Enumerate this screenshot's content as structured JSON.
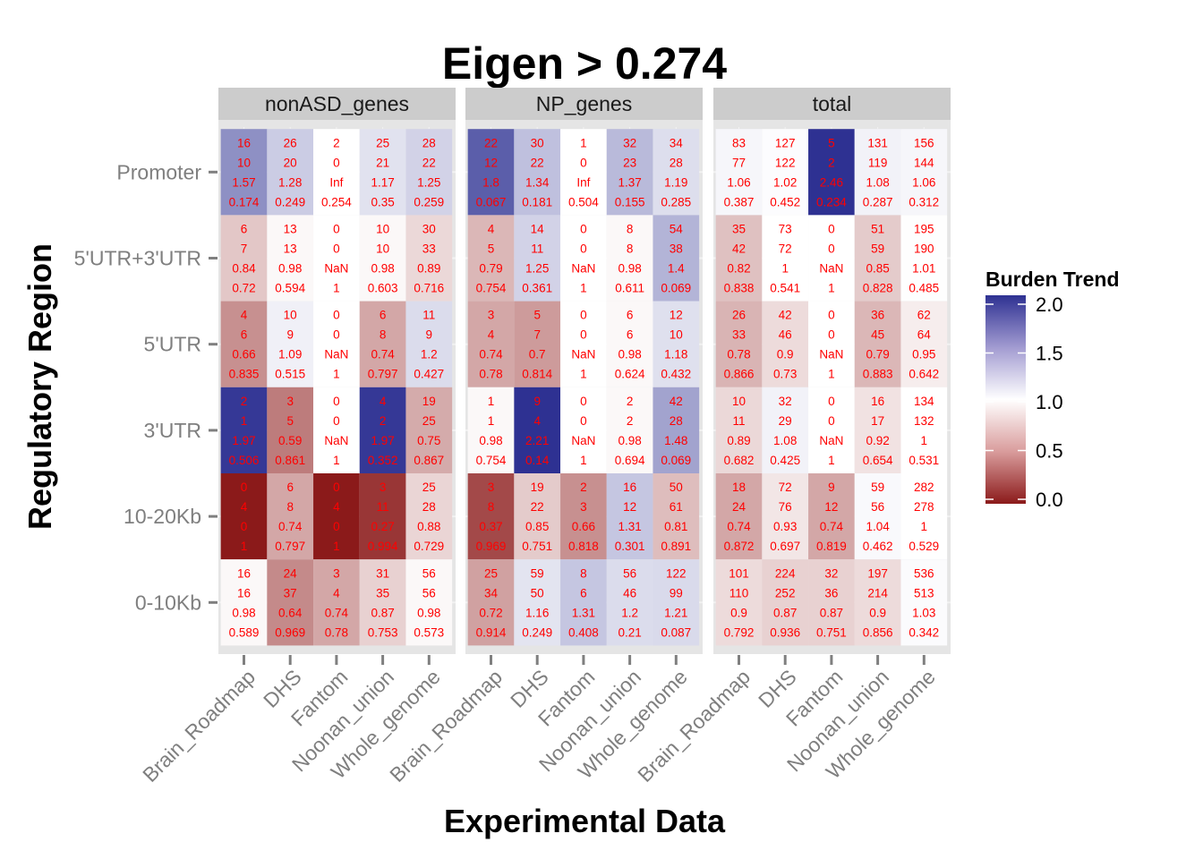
{
  "chart_data": {
    "type": "heatmap",
    "title": "Eigen > 0.274",
    "xlabel": "Experimental Data",
    "ylabel": "Regulatory Region",
    "facets": [
      "nonASD_genes",
      "NP_genes",
      "total"
    ],
    "x_categories": [
      "Brain_Roadmap",
      "DHS",
      "Fantom",
      "Noonan_union",
      "Whole_genome"
    ],
    "y_categories": [
      "Promoter",
      "5'UTR+3'UTR",
      "5'UTR",
      "3'UTR",
      "10-20Kb",
      "0-10Kb"
    ],
    "legend": {
      "title": "Burden Trend",
      "position": "right",
      "ticks": [
        "2.0",
        "1.5",
        "1.0",
        "0.5",
        "0.0"
      ],
      "range": [
        0,
        2
      ],
      "colors": {
        "low": "#8b1a1a",
        "mid": "#ffffff",
        "high": "#2e3192"
      }
    },
    "cells": {
      "nonASD_genes": [
        [
          [
            "16",
            "10",
            "1.57",
            "0.174"
          ],
          [
            "26",
            "20",
            "1.28",
            "0.249"
          ],
          [
            "2",
            "0",
            "Inf",
            "0.254"
          ],
          [
            "25",
            "21",
            "1.17",
            "0.35"
          ],
          [
            "28",
            "22",
            "1.25",
            "0.259"
          ]
        ],
        [
          [
            "6",
            "7",
            "0.84",
            "0.72"
          ],
          [
            "13",
            "13",
            "0.98",
            "0.594"
          ],
          [
            "0",
            "0",
            "NaN",
            "1"
          ],
          [
            "10",
            "10",
            "0.98",
            "0.603"
          ],
          [
            "30",
            "33",
            "0.89",
            "0.716"
          ]
        ],
        [
          [
            "4",
            "6",
            "0.66",
            "0.835"
          ],
          [
            "10",
            "9",
            "1.09",
            "0.515"
          ],
          [
            "0",
            "0",
            "NaN",
            "1"
          ],
          [
            "6",
            "8",
            "0.74",
            "0.797"
          ],
          [
            "11",
            "9",
            "1.2",
            "0.427"
          ]
        ],
        [
          [
            "2",
            "1",
            "1.97",
            "0.506"
          ],
          [
            "3",
            "5",
            "0.59",
            "0.861"
          ],
          [
            "0",
            "0",
            "NaN",
            "1"
          ],
          [
            "4",
            "2",
            "1.97",
            "0.352"
          ],
          [
            "19",
            "25",
            "0.75",
            "0.867"
          ]
        ],
        [
          [
            "0",
            "4",
            "0",
            "1"
          ],
          [
            "6",
            "8",
            "0.74",
            "0.797"
          ],
          [
            "0",
            "4",
            "0",
            "1"
          ],
          [
            "3",
            "11",
            "0.27",
            "0.994"
          ],
          [
            "25",
            "28",
            "0.88",
            "0.729"
          ]
        ],
        [
          [
            "16",
            "16",
            "0.98",
            "0.589"
          ],
          [
            "24",
            "37",
            "0.64",
            "0.969"
          ],
          [
            "3",
            "4",
            "0.74",
            "0.78"
          ],
          [
            "31",
            "35",
            "0.87",
            "0.753"
          ],
          [
            "56",
            "56",
            "0.98",
            "0.573"
          ]
        ]
      ],
      "NP_genes": [
        [
          [
            "22",
            "12",
            "1.8",
            "0.067"
          ],
          [
            "30",
            "22",
            "1.34",
            "0.181"
          ],
          [
            "1",
            "0",
            "Inf",
            "0.504"
          ],
          [
            "32",
            "23",
            "1.37",
            "0.155"
          ],
          [
            "34",
            "28",
            "1.19",
            "0.285"
          ]
        ],
        [
          [
            "4",
            "5",
            "0.79",
            "0.754"
          ],
          [
            "14",
            "11",
            "1.25",
            "0.361"
          ],
          [
            "0",
            "0",
            "NaN",
            "1"
          ],
          [
            "8",
            "8",
            "0.98",
            "0.611"
          ],
          [
            "54",
            "38",
            "1.4",
            "0.069"
          ]
        ],
        [
          [
            "3",
            "4",
            "0.74",
            "0.78"
          ],
          [
            "5",
            "7",
            "0.7",
            "0.814"
          ],
          [
            "0",
            "0",
            "NaN",
            "1"
          ],
          [
            "6",
            "6",
            "0.98",
            "0.624"
          ],
          [
            "12",
            "10",
            "1.18",
            "0.432"
          ]
        ],
        [
          [
            "1",
            "1",
            "0.98",
            "0.754"
          ],
          [
            "9",
            "4",
            "2.21",
            "0.14"
          ],
          [
            "0",
            "0",
            "NaN",
            "1"
          ],
          [
            "2",
            "2",
            "0.98",
            "0.694"
          ],
          [
            "42",
            "28",
            "1.48",
            "0.069"
          ]
        ],
        [
          [
            "3",
            "8",
            "0.37",
            "0.969"
          ],
          [
            "19",
            "22",
            "0.85",
            "0.751"
          ],
          [
            "2",
            "3",
            "0.66",
            "0.818"
          ],
          [
            "16",
            "12",
            "1.31",
            "0.301"
          ],
          [
            "50",
            "61",
            "0.81",
            "0.891"
          ]
        ],
        [
          [
            "25",
            "34",
            "0.72",
            "0.914"
          ],
          [
            "59",
            "50",
            "1.16",
            "0.249"
          ],
          [
            "8",
            "6",
            "1.31",
            "0.408"
          ],
          [
            "56",
            "46",
            "1.2",
            "0.21"
          ],
          [
            "122",
            "99",
            "1.21",
            "0.087"
          ]
        ]
      ],
      "total": [
        [
          [
            "83",
            "77",
            "1.06",
            "0.387"
          ],
          [
            "127",
            "122",
            "1.02",
            "0.452"
          ],
          [
            "5",
            "2",
            "2.46",
            "0.234"
          ],
          [
            "131",
            "119",
            "1.08",
            "0.287"
          ],
          [
            "156",
            "144",
            "1.06",
            "0.312"
          ]
        ],
        [
          [
            "35",
            "42",
            "0.82",
            "0.838"
          ],
          [
            "73",
            "72",
            "1",
            "0.541"
          ],
          [
            "0",
            "0",
            "NaN",
            "1"
          ],
          [
            "51",
            "59",
            "0.85",
            "0.828"
          ],
          [
            "195",
            "190",
            "1.01",
            "0.485"
          ]
        ],
        [
          [
            "26",
            "33",
            "0.78",
            "0.866"
          ],
          [
            "42",
            "46",
            "0.9",
            "0.73"
          ],
          [
            "0",
            "0",
            "NaN",
            "1"
          ],
          [
            "36",
            "45",
            "0.79",
            "0.883"
          ],
          [
            "62",
            "64",
            "0.95",
            "0.642"
          ]
        ],
        [
          [
            "10",
            "11",
            "0.89",
            "0.682"
          ],
          [
            "32",
            "29",
            "1.08",
            "0.425"
          ],
          [
            "0",
            "0",
            "NaN",
            "1"
          ],
          [
            "16",
            "17",
            "0.92",
            "0.654"
          ],
          [
            "134",
            "132",
            "1",
            "0.531"
          ]
        ],
        [
          [
            "18",
            "24",
            "0.74",
            "0.872"
          ],
          [
            "72",
            "76",
            "0.93",
            "0.697"
          ],
          [
            "9",
            "12",
            "0.74",
            "0.819"
          ],
          [
            "59",
            "56",
            "1.04",
            "0.462"
          ],
          [
            "282",
            "278",
            "1",
            "0.529"
          ]
        ],
        [
          [
            "101",
            "110",
            "0.9",
            "0.792"
          ],
          [
            "224",
            "252",
            "0.87",
            "0.936"
          ],
          [
            "32",
            "36",
            "0.87",
            "0.751"
          ],
          [
            "197",
            "214",
            "0.9",
            "0.856"
          ],
          [
            "536",
            "513",
            "1.03",
            "0.342"
          ]
        ]
      ]
    }
  }
}
